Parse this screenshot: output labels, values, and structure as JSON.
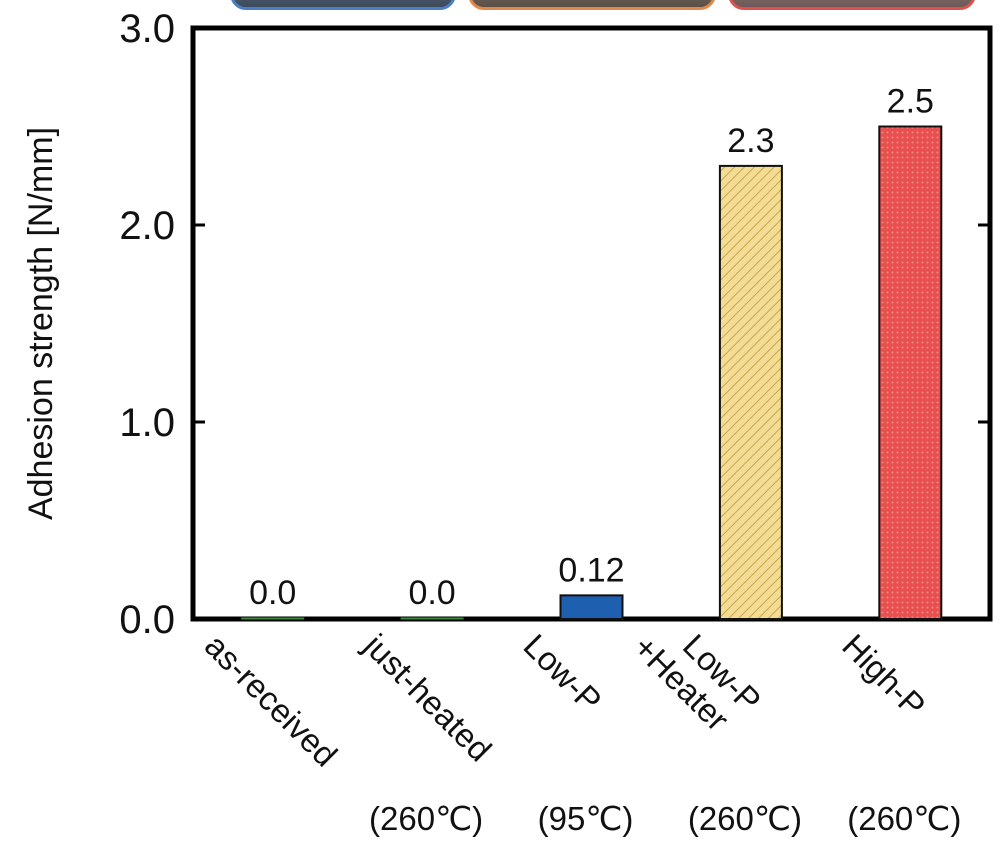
{
  "chart_data": {
    "type": "bar",
    "categories": [
      "as-received",
      "just-heated",
      "Low-P",
      "Low-P\n+Heater",
      "High-P"
    ],
    "temperatures": [
      "",
      "(260℃)",
      "(95℃)",
      "(260℃)",
      "(260℃)"
    ],
    "values": [
      0.0,
      0.0,
      0.12,
      2.3,
      2.5
    ],
    "value_labels": [
      "0.0",
      "0.0",
      "0.12",
      "2.3",
      "2.5"
    ],
    "ylabel": "Adhesion strength [N/mm]",
    "ylim": [
      0.0,
      3.0
    ],
    "yticks": [
      "0.0",
      "1.0",
      "2.0",
      "3.0"
    ],
    "grid": false,
    "bar_colors": [
      "#3a8a3a",
      "#3a8a3a",
      "#1f5fb0",
      "#f3dd96",
      "#e8504f"
    ],
    "bar_patterns": [
      "solid",
      "solid",
      "solid",
      "hatched",
      "dotted"
    ]
  },
  "thumbnails": [
    {
      "name": "blue-thumbnail",
      "color": "#4a7fc4"
    },
    {
      "name": "orange-thumbnail",
      "color": "#e0884a"
    },
    {
      "name": "red-thumbnail",
      "color": "#d9534f"
    }
  ]
}
